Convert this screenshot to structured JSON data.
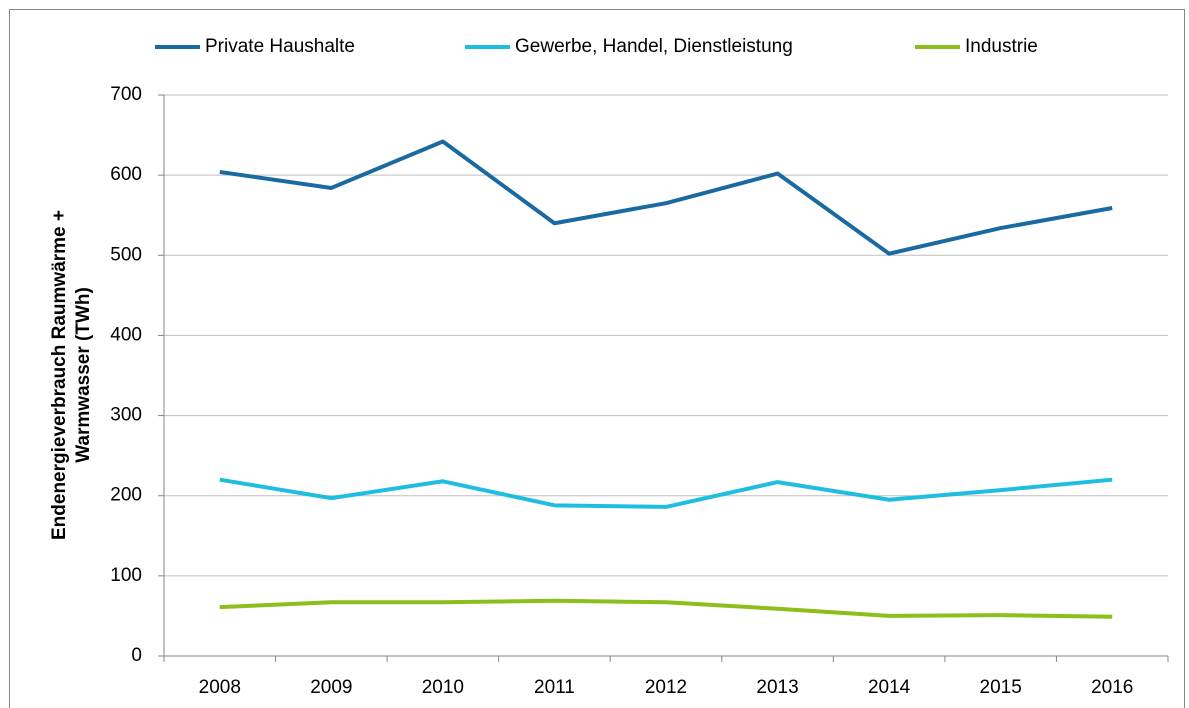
{
  "chart_data": {
    "type": "line",
    "ylabel": [
      "Endenergieverbrauch Raumwärme +",
      "Warmwasser (TWh)"
    ],
    "categories": [
      "2008",
      "2009",
      "2010",
      "2011",
      "2012",
      "2013",
      "2014",
      "2015",
      "2016"
    ],
    "series": [
      {
        "name": "Private Haushalte",
        "color": "#1a6aa2",
        "values": [
          604,
          584,
          642,
          540,
          565,
          602,
          502,
          534,
          559
        ]
      },
      {
        "name": "Gewerbe, Handel, Dienstleistung",
        "color": "#1fbde0",
        "values": [
          220,
          197,
          218,
          188,
          186,
          217,
          195,
          207,
          220
        ]
      },
      {
        "name": "Industrie",
        "color": "#8cbf1a",
        "values": [
          61,
          67,
          67,
          69,
          67,
          59,
          50,
          51,
          49
        ]
      }
    ],
    "ylim": [
      0,
      700
    ],
    "yticks": [
      0,
      100,
      200,
      300,
      400,
      500,
      600,
      700
    ],
    "grid": true,
    "legend": "top"
  }
}
